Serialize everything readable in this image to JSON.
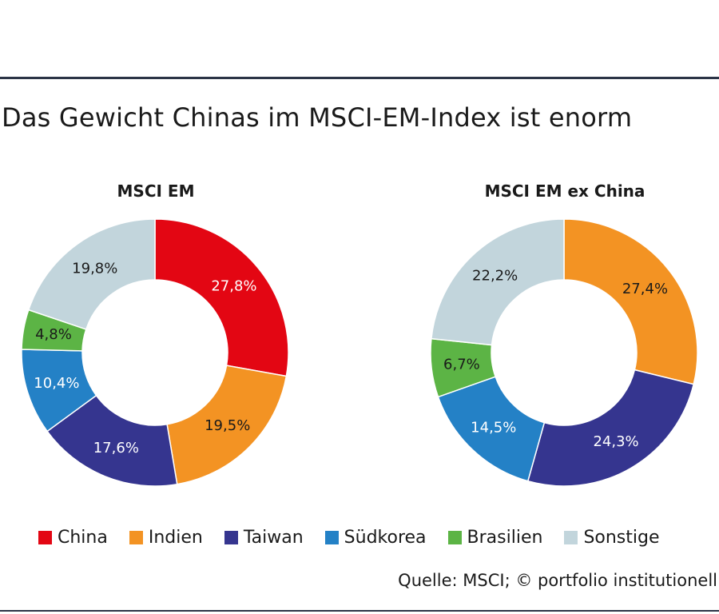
{
  "page": {
    "title": "Das Gewicht Chinas im MSCI-EM-Index ist enorm",
    "source": "Quelle: MSCI; © portfolio institutionell"
  },
  "legend": [
    {
      "label": "China",
      "color": "#e30613"
    },
    {
      "label": "Indien",
      "color": "#f39323"
    },
    {
      "label": "Taiwan",
      "color": "#35358f"
    },
    {
      "label": "Südkorea",
      "color": "#2481c6"
    },
    {
      "label": "Brasilien",
      "color": "#5cb445"
    },
    {
      "label": "Sonstige",
      "color": "#c2d5dc"
    }
  ],
  "chart_data": [
    {
      "type": "pie",
      "donut": true,
      "title": "MSCI EM",
      "categories": [
        "China",
        "Indien",
        "Taiwan",
        "Südkorea",
        "Brasilien",
        "Sonstige"
      ],
      "values": [
        27.8,
        19.5,
        17.6,
        10.4,
        4.8,
        19.8
      ],
      "labels": [
        "27,8%",
        "19,5%",
        "17,6%",
        "10,4%",
        "4,8%",
        "19,8%"
      ],
      "colors": [
        "#e30613",
        "#f39323",
        "#35358f",
        "#2481c6",
        "#5cb445",
        "#c2d5dc"
      ],
      "label_colors": [
        "#ffffff",
        "#1a1a1a",
        "#ffffff",
        "#ffffff",
        "#1a1a1a",
        "#1a1a1a"
      ]
    },
    {
      "type": "pie",
      "donut": true,
      "title": "MSCI EM ex China",
      "categories": [
        "Indien",
        "Taiwan",
        "Südkorea",
        "Brasilien",
        "Sonstige"
      ],
      "values": [
        27.4,
        24.3,
        14.5,
        6.7,
        22.2
      ],
      "labels": [
        "27,4%",
        "24,3%",
        "14,5%",
        "6,7%",
        "22,2%"
      ],
      "colors": [
        "#f39323",
        "#35358f",
        "#2481c6",
        "#5cb445",
        "#c2d5dc"
      ],
      "label_colors": [
        "#1a1a1a",
        "#ffffff",
        "#ffffff",
        "#1a1a1a",
        "#1a1a1a"
      ]
    }
  ]
}
